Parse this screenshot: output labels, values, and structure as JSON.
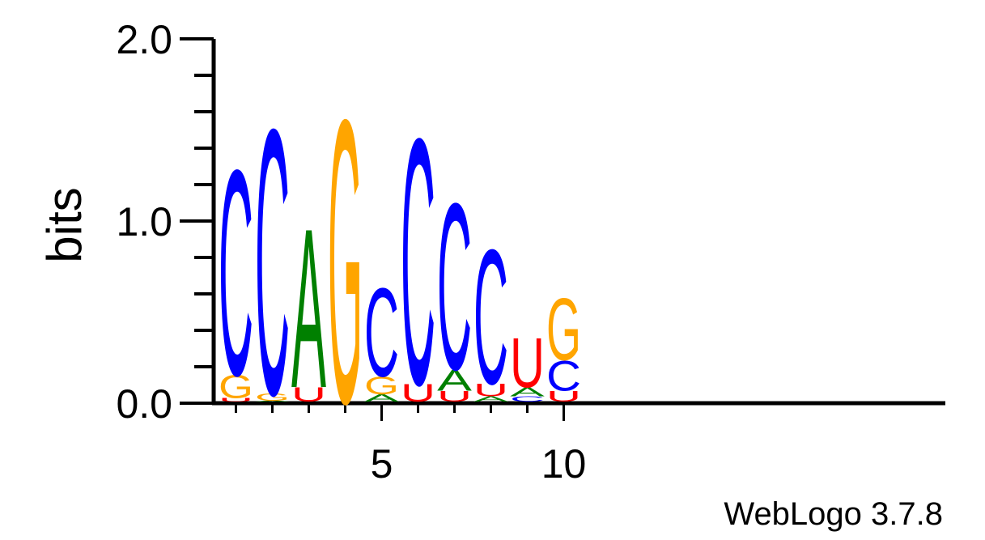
{
  "chart_data": {
    "type": "sequence-logo",
    "ylabel": "bits",
    "ylim": [
      0,
      2
    ],
    "yticks": [
      "0.0",
      "1.0",
      "2.0"
    ],
    "xticks": [
      {
        "position": 5,
        "label": "5"
      },
      {
        "position": 10,
        "label": "10"
      }
    ],
    "credit": "WebLogo 3.7.8",
    "colors": {
      "A": "#008000",
      "C": "#0000ff",
      "G": "#ffa500",
      "U": "#ff0000"
    },
    "positions": [
      {
        "position": 1,
        "stack": [
          [
            "U",
            0.02
          ],
          [
            "G",
            0.13
          ],
          [
            "C",
            1.16
          ]
        ]
      },
      {
        "position": 2,
        "stack": [
          [
            "A",
            0.005
          ],
          [
            "G",
            0.04
          ],
          [
            "C",
            1.5
          ]
        ]
      },
      {
        "position": 3,
        "stack": [
          [
            "U",
            0.08
          ],
          [
            "A",
            0.9
          ]
        ]
      },
      {
        "position": 4,
        "stack": [
          [
            "G",
            1.6
          ]
        ]
      },
      {
        "position": 5,
        "stack": [
          [
            "A",
            0.04
          ],
          [
            "G",
            0.1
          ],
          [
            "C",
            0.5
          ]
        ]
      },
      {
        "position": 6,
        "stack": [
          [
            "U",
            0.1
          ],
          [
            "C",
            1.39
          ]
        ]
      },
      {
        "position": 7,
        "stack": [
          [
            "U",
            0.06
          ],
          [
            "A",
            0.12
          ],
          [
            "C",
            0.94
          ]
        ]
      },
      {
        "position": 8,
        "stack": [
          [
            "A",
            0.03
          ],
          [
            "U",
            0.07
          ],
          [
            "C",
            0.76
          ]
        ]
      },
      {
        "position": 9,
        "stack": [
          [
            "C",
            0.03
          ],
          [
            "A",
            0.05
          ],
          [
            "U",
            0.28
          ],
          [
            "G",
            0.0
          ]
        ]
      },
      {
        "position": 10,
        "stack": [
          [
            "U",
            0.06
          ],
          [
            "C",
            0.17
          ],
          [
            "G",
            0.35
          ]
        ]
      }
    ]
  }
}
